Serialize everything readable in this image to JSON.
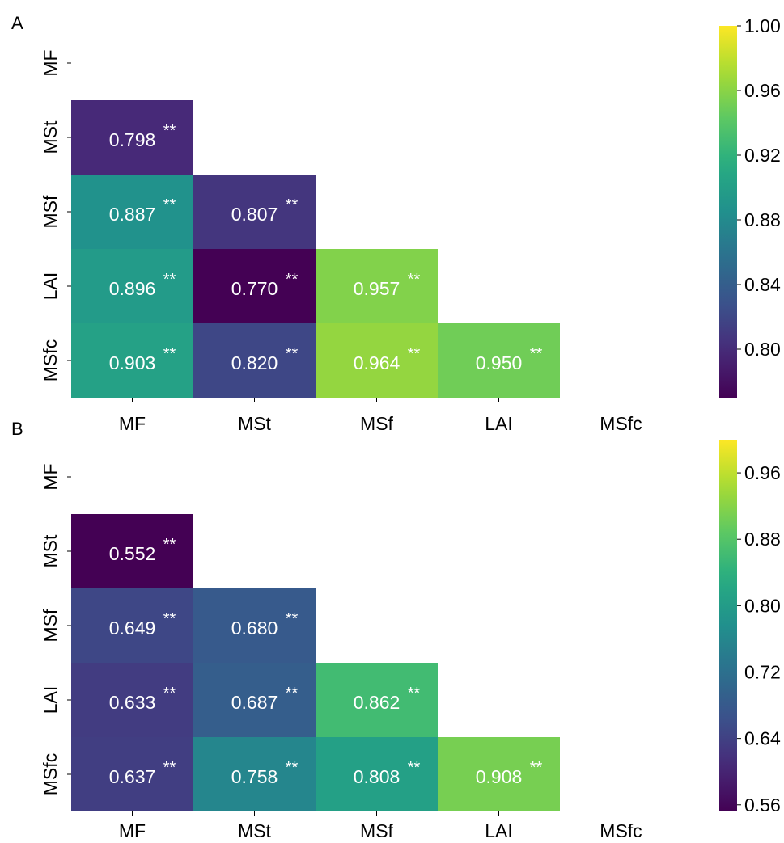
{
  "panels": [
    {
      "label": "A"
    },
    {
      "label": "B"
    }
  ],
  "chart_data": [
    {
      "type": "heatmap",
      "panel": "A",
      "x_labels": [
        "MF",
        "MSt",
        "MSf",
        "LAI",
        "MSfc"
      ],
      "y_labels": [
        "MF",
        "MSt",
        "MSf",
        "LAI",
        "MSfc"
      ],
      "cells": [
        {
          "row": 1,
          "col": 0,
          "value": 0.798,
          "text": "0.798",
          "sig": "**"
        },
        {
          "row": 2,
          "col": 0,
          "value": 0.887,
          "text": "0.887",
          "sig": "**"
        },
        {
          "row": 2,
          "col": 1,
          "value": 0.807,
          "text": "0.807",
          "sig": "**"
        },
        {
          "row": 3,
          "col": 0,
          "value": 0.896,
          "text": "0.896",
          "sig": "**"
        },
        {
          "row": 3,
          "col": 1,
          "value": 0.77,
          "text": "0.770",
          "sig": "**"
        },
        {
          "row": 3,
          "col": 2,
          "value": 0.957,
          "text": "0.957",
          "sig": "**"
        },
        {
          "row": 4,
          "col": 0,
          "value": 0.903,
          "text": "0.903",
          "sig": "**"
        },
        {
          "row": 4,
          "col": 1,
          "value": 0.82,
          "text": "0.820",
          "sig": "**"
        },
        {
          "row": 4,
          "col": 2,
          "value": 0.964,
          "text": "0.964",
          "sig": "**"
        },
        {
          "row": 4,
          "col": 3,
          "value": 0.95,
          "text": "0.950",
          "sig": "**"
        }
      ],
      "colormap": "viridis",
      "colorbar": {
        "min": 0.77,
        "max": 1.0,
        "ticks": [
          "1.00",
          "0.96",
          "0.92",
          "0.88",
          "0.84",
          "0.80"
        ]
      }
    },
    {
      "type": "heatmap",
      "panel": "B",
      "x_labels": [
        "MF",
        "MSt",
        "MSf",
        "LAI",
        "MSfc"
      ],
      "y_labels": [
        "MF",
        "MSt",
        "MSf",
        "LAI",
        "MSfc"
      ],
      "cells": [
        {
          "row": 1,
          "col": 0,
          "value": 0.552,
          "text": "0.552",
          "sig": "**"
        },
        {
          "row": 2,
          "col": 0,
          "value": 0.649,
          "text": "0.649",
          "sig": "**"
        },
        {
          "row": 2,
          "col": 1,
          "value": 0.68,
          "text": "0.680",
          "sig": "**"
        },
        {
          "row": 3,
          "col": 0,
          "value": 0.633,
          "text": "0.633",
          "sig": "**"
        },
        {
          "row": 3,
          "col": 1,
          "value": 0.687,
          "text": "0.687",
          "sig": "**"
        },
        {
          "row": 3,
          "col": 2,
          "value": 0.862,
          "text": "0.862",
          "sig": "**"
        },
        {
          "row": 4,
          "col": 0,
          "value": 0.637,
          "text": "0.637",
          "sig": "**"
        },
        {
          "row": 4,
          "col": 1,
          "value": 0.758,
          "text": "0.758",
          "sig": "**"
        },
        {
          "row": 4,
          "col": 2,
          "value": 0.808,
          "text": "0.808",
          "sig": "**"
        },
        {
          "row": 4,
          "col": 3,
          "value": 0.908,
          "text": "0.908",
          "sig": "**"
        }
      ],
      "colormap": "viridis",
      "colorbar": {
        "min": 0.552,
        "max": 1.0,
        "ticks": [
          "0.96",
          "0.88",
          "0.80",
          "0.72",
          "0.64",
          "0.56"
        ]
      }
    }
  ]
}
